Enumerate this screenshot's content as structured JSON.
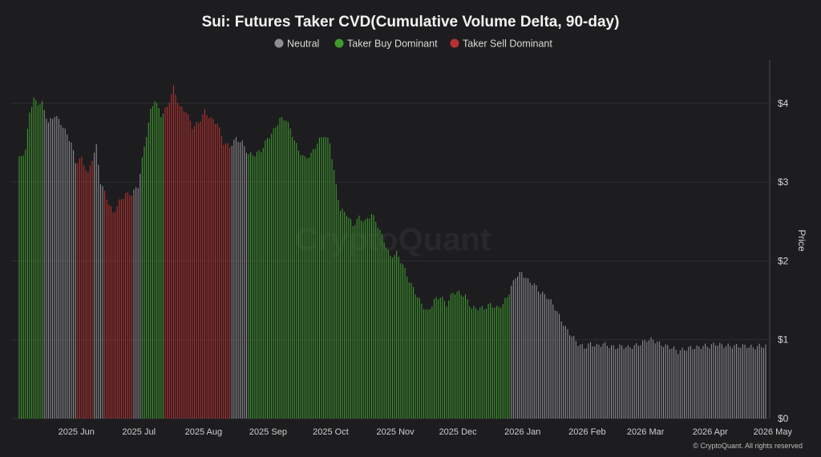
{
  "chart_data": {
    "type": "bar",
    "title": "Sui: Futures Taker CVD(Cumulative Volume Delta, 90-day)",
    "legend": [
      {
        "name": "Neutral",
        "color": "#8e8e93"
      },
      {
        "name": "Taker Buy Dominant",
        "color": "#3f9a2e"
      },
      {
        "name": "Taker Sell Dominant",
        "color": "#b83131"
      }
    ],
    "legend_position": "top-center",
    "ylabel": "Price",
    "ylim": [
      0,
      4.5
    ],
    "y_ticks": [
      {
        "value": 0,
        "label": "$0"
      },
      {
        "value": 1,
        "label": "$1"
      },
      {
        "value": 2,
        "label": "$2"
      },
      {
        "value": 3,
        "label": "$3"
      },
      {
        "value": 4,
        "label": "$4"
      }
    ],
    "x_ticks": [
      "2025 Jun",
      "2025 Jul",
      "2025 Aug",
      "2025 Sep",
      "2025 Oct",
      "2025 Nov",
      "2025 Dec",
      "2026 Jan",
      "2026 Feb",
      "2026 Mar",
      "2026 Apr",
      "2026 May"
    ],
    "x_range": [
      "2025-05-10",
      "2026-05-03"
    ],
    "grid": "horizontal",
    "anchors": [
      [
        "2025-05-10",
        3.3
      ],
      [
        "2025-05-13",
        3.4
      ],
      [
        "2025-05-15",
        3.9
      ],
      [
        "2025-05-17",
        4.05
      ],
      [
        "2025-05-19",
        4.0
      ],
      [
        "2025-05-21",
        4.0
      ],
      [
        "2025-05-24",
        3.75
      ],
      [
        "2025-05-27",
        3.85
      ],
      [
        "2025-05-30",
        3.75
      ],
      [
        "2025-06-02",
        3.6
      ],
      [
        "2025-06-04",
        3.5
      ],
      [
        "2025-06-06",
        3.25
      ],
      [
        "2025-06-09",
        3.3
      ],
      [
        "2025-06-12",
        3.1
      ],
      [
        "2025-06-14",
        3.3
      ],
      [
        "2025-06-16",
        3.45
      ],
      [
        "2025-06-18",
        3.0
      ],
      [
        "2025-06-21",
        2.8
      ],
      [
        "2025-06-24",
        2.6
      ],
      [
        "2025-06-27",
        2.75
      ],
      [
        "2025-06-30",
        2.85
      ],
      [
        "2025-07-03",
        2.85
      ],
      [
        "2025-07-06",
        2.95
      ],
      [
        "2025-07-09",
        3.45
      ],
      [
        "2025-07-12",
        3.9
      ],
      [
        "2025-07-14",
        4.05
      ],
      [
        "2025-07-17",
        3.85
      ],
      [
        "2025-07-20",
        3.95
      ],
      [
        "2025-07-23",
        4.2
      ],
      [
        "2025-07-26",
        3.95
      ],
      [
        "2025-07-29",
        3.9
      ],
      [
        "2025-08-01",
        3.7
      ],
      [
        "2025-08-04",
        3.75
      ],
      [
        "2025-08-07",
        3.9
      ],
      [
        "2025-08-10",
        3.8
      ],
      [
        "2025-08-13",
        3.75
      ],
      [
        "2025-08-16",
        3.5
      ],
      [
        "2025-08-19",
        3.45
      ],
      [
        "2025-08-22",
        3.55
      ],
      [
        "2025-08-25",
        3.5
      ],
      [
        "2025-08-28",
        3.35
      ],
      [
        "2025-08-31",
        3.35
      ],
      [
        "2025-09-03",
        3.4
      ],
      [
        "2025-09-06",
        3.55
      ],
      [
        "2025-09-09",
        3.65
      ],
      [
        "2025-09-12",
        3.8
      ],
      [
        "2025-09-15",
        3.8
      ],
      [
        "2025-09-18",
        3.6
      ],
      [
        "2025-09-21",
        3.4
      ],
      [
        "2025-09-24",
        3.3
      ],
      [
        "2025-09-27",
        3.35
      ],
      [
        "2025-09-30",
        3.5
      ],
      [
        "2025-10-03",
        3.6
      ],
      [
        "2025-10-06",
        3.5
      ],
      [
        "2025-10-09",
        2.95
      ],
      [
        "2025-10-11",
        2.65
      ],
      [
        "2025-10-14",
        2.6
      ],
      [
        "2025-10-17",
        2.45
      ],
      [
        "2025-10-20",
        2.55
      ],
      [
        "2025-10-23",
        2.5
      ],
      [
        "2025-10-26",
        2.6
      ],
      [
        "2025-10-29",
        2.45
      ],
      [
        "2025-11-01",
        2.25
      ],
      [
        "2025-11-04",
        2.05
      ],
      [
        "2025-11-07",
        2.1
      ],
      [
        "2025-11-10",
        1.95
      ],
      [
        "2025-11-13",
        1.75
      ],
      [
        "2025-11-16",
        1.6
      ],
      [
        "2025-11-19",
        1.45
      ],
      [
        "2025-11-22",
        1.35
      ],
      [
        "2025-11-25",
        1.5
      ],
      [
        "2025-11-28",
        1.55
      ],
      [
        "2025-12-01",
        1.45
      ],
      [
        "2025-12-04",
        1.6
      ],
      [
        "2025-12-07",
        1.6
      ],
      [
        "2025-12-10",
        1.55
      ],
      [
        "2025-12-13",
        1.4
      ],
      [
        "2025-12-16",
        1.4
      ],
      [
        "2025-12-19",
        1.4
      ],
      [
        "2025-12-22",
        1.45
      ],
      [
        "2025-12-25",
        1.4
      ],
      [
        "2025-12-28",
        1.45
      ],
      [
        "2025-12-31",
        1.6
      ],
      [
        "2026-01-03",
        1.8
      ],
      [
        "2026-01-06",
        1.85
      ],
      [
        "2026-01-09",
        1.75
      ],
      [
        "2026-01-12",
        1.7
      ],
      [
        "2026-01-15",
        1.6
      ],
      [
        "2026-01-18",
        1.55
      ],
      [
        "2026-01-21",
        1.45
      ],
      [
        "2026-01-24",
        1.3
      ],
      [
        "2026-01-27",
        1.15
      ],
      [
        "2026-01-30",
        1.05
      ],
      [
        "2026-02-02",
        0.95
      ],
      [
        "2026-02-05",
        0.9
      ],
      [
        "2026-02-08",
        0.95
      ],
      [
        "2026-02-11",
        0.92
      ],
      [
        "2026-02-14",
        0.95
      ],
      [
        "2026-02-17",
        0.92
      ],
      [
        "2026-02-20",
        0.9
      ],
      [
        "2026-02-23",
        0.92
      ],
      [
        "2026-02-26",
        0.9
      ],
      [
        "2026-03-01",
        0.92
      ],
      [
        "2026-03-04",
        0.95
      ],
      [
        "2026-03-07",
        1.0
      ],
      [
        "2026-03-10",
        1.0
      ],
      [
        "2026-03-13",
        0.95
      ],
      [
        "2026-03-16",
        0.92
      ],
      [
        "2026-03-19",
        0.9
      ],
      [
        "2026-03-22",
        0.85
      ],
      [
        "2026-03-25",
        0.88
      ],
      [
        "2026-03-28",
        0.9
      ],
      [
        "2026-03-31",
        0.9
      ],
      [
        "2026-04-03",
        0.92
      ],
      [
        "2026-04-06",
        0.92
      ],
      [
        "2026-04-09",
        0.95
      ],
      [
        "2026-04-12",
        0.93
      ],
      [
        "2026-04-15",
        0.92
      ],
      [
        "2026-04-18",
        0.92
      ],
      [
        "2026-04-21",
        0.92
      ],
      [
        "2026-04-24",
        0.92
      ],
      [
        "2026-04-27",
        0.9
      ],
      [
        "2026-04-30",
        0.92
      ],
      [
        "2026-05-03",
        0.92
      ]
    ],
    "regimes": [
      {
        "start": "2025-05-10",
        "end": "2025-05-21",
        "state": "Taker Buy Dominant"
      },
      {
        "start": "2025-05-22",
        "end": "2025-06-06",
        "state": "Neutral"
      },
      {
        "start": "2025-06-07",
        "end": "2025-06-14",
        "state": "Taker Sell Dominant"
      },
      {
        "start": "2025-06-15",
        "end": "2025-06-19",
        "state": "Neutral"
      },
      {
        "start": "2025-06-20",
        "end": "2025-07-03",
        "state": "Taker Sell Dominant"
      },
      {
        "start": "2025-07-04",
        "end": "2025-07-07",
        "state": "Neutral"
      },
      {
        "start": "2025-07-08",
        "end": "2025-07-18",
        "state": "Taker Buy Dominant"
      },
      {
        "start": "2025-07-19",
        "end": "2025-08-19",
        "state": "Taker Sell Dominant"
      },
      {
        "start": "2025-08-20",
        "end": "2025-08-27",
        "state": "Neutral"
      },
      {
        "start": "2025-08-28",
        "end": "2025-12-31",
        "state": "Taker Buy Dominant"
      },
      {
        "start": "2026-01-01",
        "end": "2026-05-03",
        "state": "Neutral"
      }
    ]
  },
  "watermark": "CryptoQuant",
  "footer": "© CryptoQuant. All rights reserved"
}
